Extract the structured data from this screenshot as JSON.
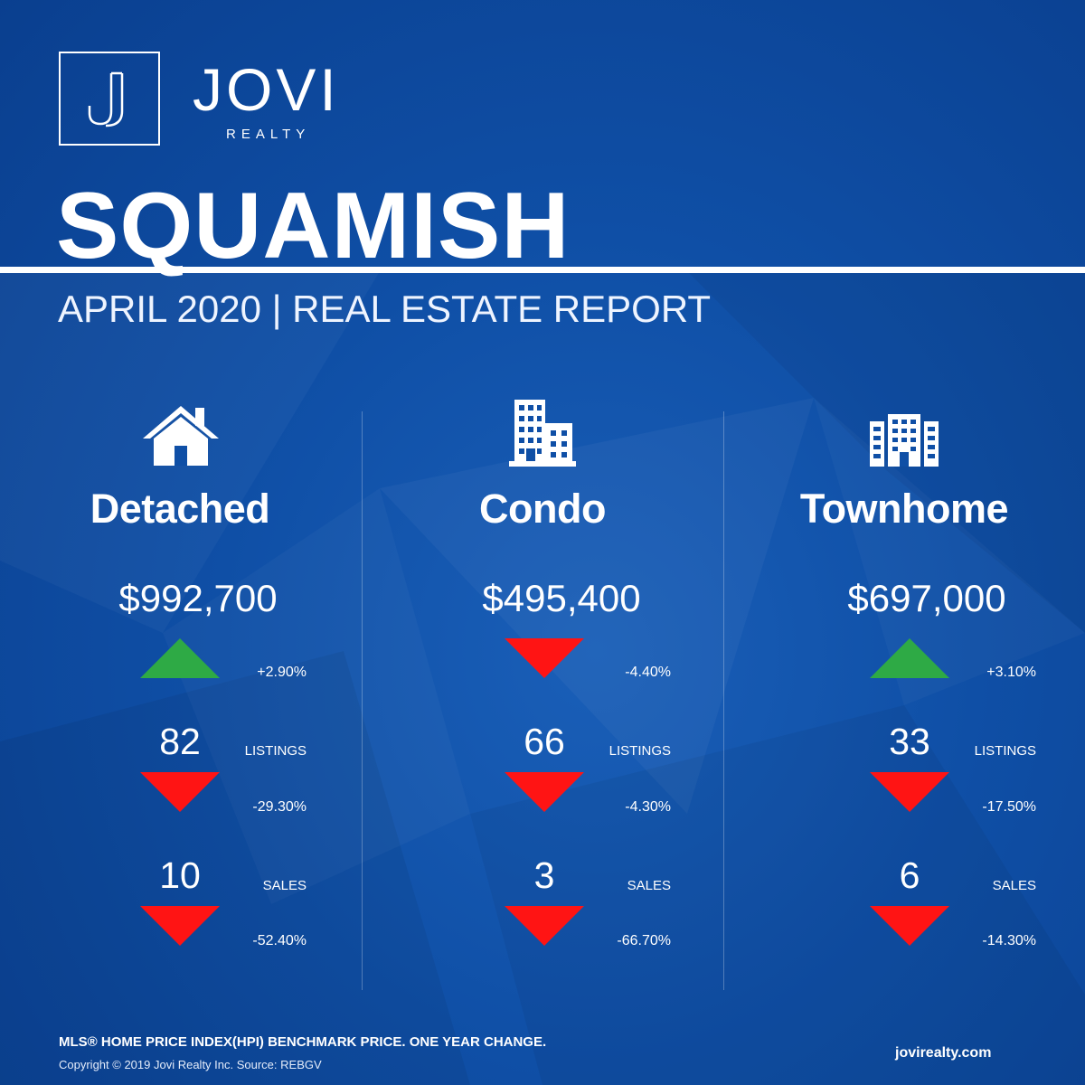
{
  "brand": {
    "name": "JOVI",
    "sub": "REALTY",
    "website": "jovirealty.com"
  },
  "report": {
    "city": "SQUAMISH",
    "subtitle": "APRIL 2020 | REAL ESTATE REPORT"
  },
  "colors": {
    "background": "#0f4fa6",
    "up": "#2eaa45",
    "down": "#ff1414",
    "text": "#ffffff"
  },
  "categories": [
    {
      "icon": "house-icon",
      "title": "Detached",
      "price": "$992,700",
      "price_change": "+2.90%",
      "price_dir": "up",
      "listings": "82",
      "listings_label": "LISTINGS",
      "listings_change": "-29.30%",
      "listings_dir": "down",
      "sales": "10",
      "sales_label": "SALES",
      "sales_change": "-52.40%",
      "sales_dir": "down"
    },
    {
      "icon": "condo-building-icon",
      "title": "Condo",
      "price": "$495,400",
      "price_change": "-4.40%",
      "price_dir": "down",
      "listings": "66",
      "listings_label": "LISTINGS",
      "listings_change": "-4.30%",
      "listings_dir": "down",
      "sales": "3",
      "sales_label": "SALES",
      "sales_change": "-66.70%",
      "sales_dir": "down"
    },
    {
      "icon": "townhome-building-icon",
      "title": "Townhome",
      "price": "$697,000",
      "price_change": "+3.10%",
      "price_dir": "up",
      "listings": "33",
      "listings_label": "LISTINGS",
      "listings_change": "-17.50%",
      "listings_dir": "down",
      "sales": "6",
      "sales_label": "SALES",
      "sales_change": "-14.30%",
      "sales_dir": "down"
    }
  ],
  "footer": {
    "note": "MLS® HOME PRICE INDEX(HPI) BENCHMARK PRICE. ONE YEAR CHANGE.",
    "copyright": "Copyright © 2019 Jovi Realty Inc. Source: REBGV"
  }
}
